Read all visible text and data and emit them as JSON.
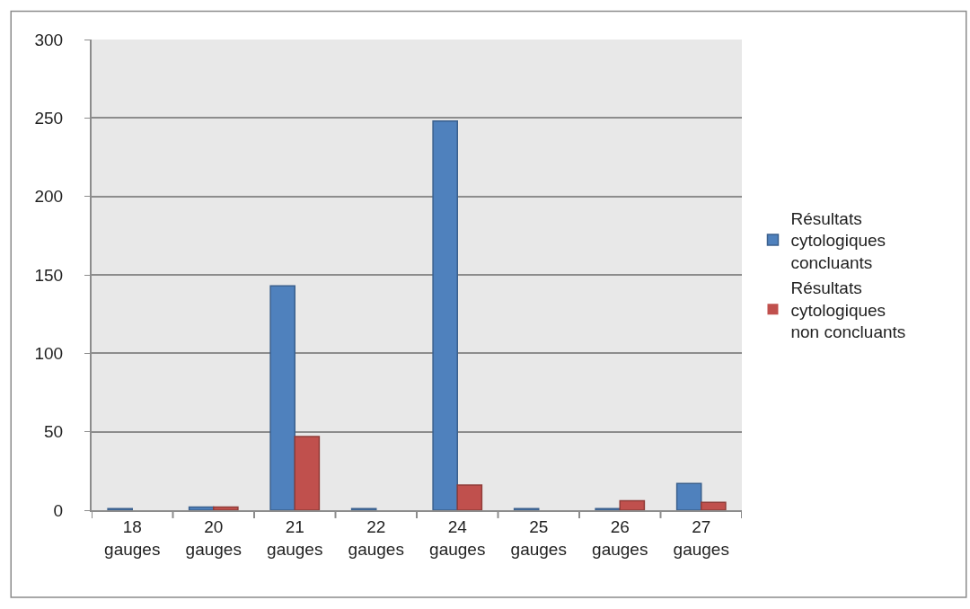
{
  "chart_data": {
    "type": "bar",
    "categories": [
      "18 gauges",
      "20 gauges",
      "21 gauges",
      "22 gauges",
      "24 gauges",
      "25 gauges",
      "26 gauges",
      "27 gauges"
    ],
    "series": [
      {
        "name": "Résultats cytologiques concluants",
        "color": "#4f81bd",
        "values": [
          1,
          2,
          143,
          1,
          248,
          1,
          1,
          17
        ]
      },
      {
        "name": "Résultats cytologiques non concluants",
        "color": "#c0504d",
        "values": [
          0,
          2,
          47,
          0,
          16,
          0,
          6,
          5
        ]
      }
    ],
    "ylim": [
      0,
      300
    ],
    "yticks": [
      0,
      50,
      100,
      150,
      200,
      250,
      300
    ],
    "grid": "y",
    "legend": "right"
  }
}
